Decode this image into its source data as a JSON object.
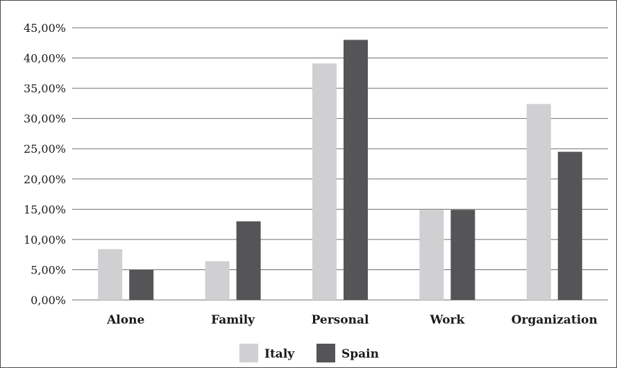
{
  "chart_data": {
    "type": "bar",
    "title": "",
    "xlabel": "",
    "ylabel": "",
    "categories": [
      "Alone",
      "Family",
      "Personal",
      "Work",
      "Organization"
    ],
    "series": [
      {
        "name": "Italy",
        "color": "#d0d0d2",
        "values": [
          8.4,
          6.4,
          39.1,
          14.9,
          32.4
        ]
      },
      {
        "name": "Spain",
        "color": "#555557",
        "values": [
          5.0,
          13.0,
          43.0,
          14.9,
          24.5
        ]
      }
    ],
    "ylim": [
      0,
      45
    ],
    "yticks": [
      0,
      5,
      10,
      15,
      20,
      25,
      30,
      35,
      40,
      45
    ],
    "ytick_labels": [
      "0,00%",
      "5,00%",
      "10,00%",
      "15,00%",
      "20,00%",
      "25,00%",
      "30,00%",
      "35,00%",
      "40,00%",
      "45,00%"
    ],
    "grid": true,
    "legend_position": "bottom-center"
  }
}
